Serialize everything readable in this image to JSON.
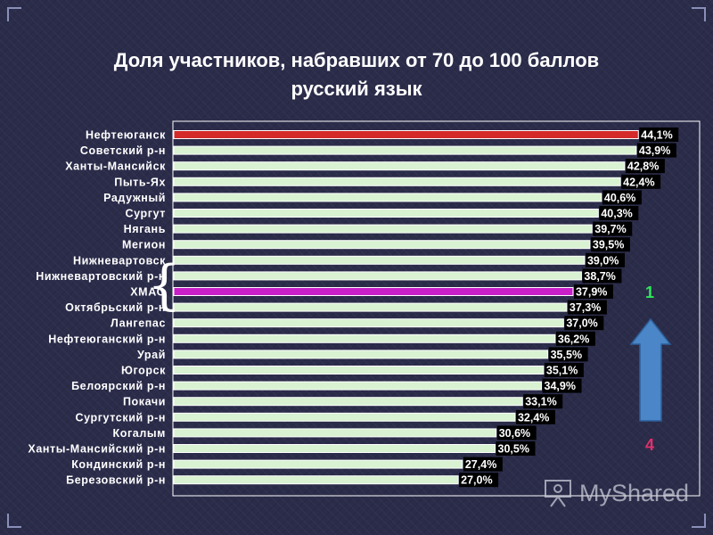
{
  "title_line1": "Доля участников, набравших от 70 до 100 баллов",
  "title_line2": "русский язык",
  "chart_data": {
    "type": "bar",
    "orientation": "horizontal",
    "categories": [
      "Нефтеюганск",
      "Советский р-н",
      "Ханты-Мансийск",
      "Пыть-Ях",
      "Радужный",
      "Сургут",
      "Нягань",
      "Мегион",
      "Нижневартовск",
      "Нижневартовский р-н",
      "ХМАО",
      "Октябрьский р-н",
      "Лангепас",
      "Нефтеюганский р-н",
      "Урай",
      "Югорск",
      "Белоярский р-н",
      "Покачи",
      "Сургутский р-н",
      "Когалым",
      "Ханты-Мансийский р-н",
      "Кондинский р-н",
      "Березовский р-н"
    ],
    "values": [
      44.1,
      43.9,
      42.8,
      42.4,
      40.6,
      40.3,
      39.7,
      39.5,
      39.0,
      38.7,
      37.9,
      37.3,
      37.0,
      36.2,
      35.5,
      35.1,
      34.9,
      33.1,
      32.4,
      30.6,
      30.5,
      27.4,
      27.0
    ],
    "value_labels": [
      "44,1%",
      "43,9%",
      "42,8%",
      "42,4%",
      "40,6%",
      "40,3%",
      "39,7%",
      "39,5%",
      "39,0%",
      "38,7%",
      "37,9%",
      "37,3%",
      "37,0%",
      "36,2%",
      "35,5%",
      "35,1%",
      "34,9%",
      "33,1%",
      "32,4%",
      "30,6%",
      "30,5%",
      "27,4%",
      "27,0%"
    ],
    "xlim": [
      0,
      50
    ],
    "grid": false,
    "colors": {
      "default_bar": "#d8f2d2",
      "highlight_top": "#d42a2a",
      "highlight_region": "#c81fc8",
      "label_box": "#000000"
    },
    "highlight": {
      "Нефтеюганск": "highlight_top",
      "ХМАО": "highlight_region"
    }
  },
  "annotations": {
    "rank_top": "1",
    "rank_bottom": "4",
    "arrow_color": "#4a86c8"
  },
  "watermark": {
    "text": "MyShared",
    "icon": "presentation-board-icon"
  }
}
